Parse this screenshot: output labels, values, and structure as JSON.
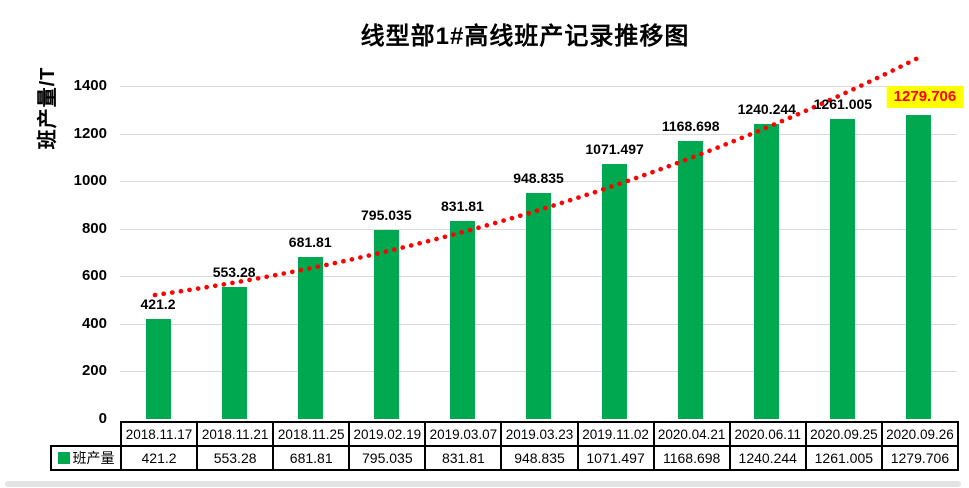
{
  "title": "线型部1#高线班产记录推移图",
  "y_axis": {
    "label": "班产量/T",
    "ticks": [
      "0",
      "200",
      "400",
      "600",
      "800",
      "1000",
      "1200",
      "1400"
    ]
  },
  "legend": {
    "label": "班产量"
  },
  "colors": {
    "bar": "#00a84f",
    "trendline": "#ff0000",
    "gridline": "#d9d9d9",
    "highlight_bg": "#ffff00",
    "highlight_text": "#ff0000",
    "label_text": "#000000"
  },
  "chart_data": {
    "type": "bar",
    "title": "线型部1#高线班产记录推移图",
    "xlabel": "",
    "ylabel": "班产量/T",
    "ylim": [
      0,
      1500
    ],
    "y_tick_values": [
      0,
      200,
      400,
      600,
      800,
      1000,
      1200,
      1400
    ],
    "grid": true,
    "categories": [
      "2018.11.17",
      "2018.11.21",
      "2018.11.25",
      "2019.02.19",
      "2019.03.07",
      "2019.03.23",
      "2019.11.02",
      "2020.04.21",
      "2020.06.11",
      "2020.09.25",
      "2020.09.26"
    ],
    "series": [
      {
        "name": "班产量",
        "values": [
          421.2,
          553.28,
          681.81,
          795.035,
          831.81,
          948.835,
          1071.497,
          1168.698,
          1240.244,
          1261.005,
          1279.706
        ]
      }
    ],
    "value_labels": [
      "421.2",
      "553.28",
      "681.81",
      "795.035",
      "831.81",
      "948.835",
      "1071.497",
      "1168.698",
      "1240.244",
      "1261.005",
      "1279.706"
    ],
    "highlighted_label_index": 10,
    "trendline": {
      "style": "dotted",
      "color": "#ff0000",
      "shape": "rising concave-up curve from first to last category"
    },
    "legend_position": "bottom-left table cell",
    "data_table_attached": true
  }
}
